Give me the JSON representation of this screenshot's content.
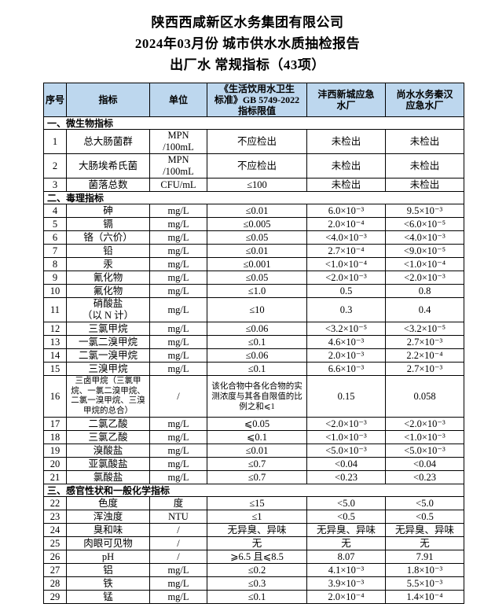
{
  "page": {
    "title1": "陕西西咸新区水务集团有限公司",
    "title2": "2024年03月份 城市供水水质抽检报告",
    "title3": "出厂水 常规指标（43项）"
  },
  "colors": {
    "header_bg": "#bdd7ee",
    "border": "#000000"
  },
  "table": {
    "header": [
      "序号",
      "指标",
      "单位",
      "《生活饮用水卫生\n标准》GB 5749-2022\n指标限值",
      "沣西新城应急\n水厂",
      "尚水水务秦汉\n应急水厂"
    ],
    "sections": [
      {
        "title": "一、微生物指标",
        "rows": [
          {
            "no": "1",
            "indicator": "总大肠菌群",
            "unit": "MPN /100mL",
            "limit": "不应检出",
            "values": [
              "未检出",
              "未检出"
            ]
          },
          {
            "no": "2",
            "indicator": "大肠埃希氏菌",
            "unit": "MPN /100mL",
            "limit": "不应检出",
            "values": [
              "未检出",
              "未检出"
            ]
          },
          {
            "no": "3",
            "indicator": "菌落总数",
            "unit": "CFU/mL",
            "limit": "≤100",
            "values": [
              "未检出",
              "未检出"
            ]
          }
        ]
      },
      {
        "title": "二、毒理指标",
        "rows": [
          {
            "no": "4",
            "indicator": "砷",
            "unit": "mg/L",
            "limit": "≤0.01",
            "values": [
              "6.0×10⁻³",
              "9.5×10⁻³"
            ]
          },
          {
            "no": "5",
            "indicator": "镉",
            "unit": "mg/L",
            "limit": "≤0.005",
            "values": [
              "2.0×10⁻⁴",
              "<6.0×10⁻⁵"
            ]
          },
          {
            "no": "6",
            "indicator": "铬（六价）",
            "unit": "mg/L",
            "limit": "≤0.05",
            "values": [
              "<4.0×10⁻³",
              "<4.0×10⁻³"
            ]
          },
          {
            "no": "7",
            "indicator": "铅",
            "unit": "mg/L",
            "limit": "≤0.01",
            "values": [
              "2.7×10⁻⁴",
              "<9.0×10⁻⁵"
            ]
          },
          {
            "no": "8",
            "indicator": "汞",
            "unit": "mg/L",
            "limit": "≤0.001",
            "values": [
              "<1.0×10⁻⁴",
              "<1.0×10⁻⁴"
            ]
          },
          {
            "no": "9",
            "indicator": "氰化物",
            "unit": "mg/L",
            "limit": "≤0.05",
            "values": [
              "<2.0×10⁻³",
              "<2.0×10⁻³"
            ]
          },
          {
            "no": "10",
            "indicator": "氟化物",
            "unit": "mg/L",
            "limit": "≤1.0",
            "values": [
              "0.5",
              "0.8"
            ]
          },
          {
            "no": "11",
            "indicator": "硝酸盐\n（以 N 计）",
            "unit": "mg/L",
            "limit": "≤10",
            "values": [
              "0.3",
              "0.4"
            ]
          },
          {
            "no": "12",
            "indicator": "三氯甲烷",
            "unit": "mg/L",
            "limit": "≤0.06",
            "values": [
              "<3.2×10⁻⁵",
              "<3.2×10⁻⁵"
            ]
          },
          {
            "no": "13",
            "indicator": "一氯二溴甲烷",
            "unit": "mg/L",
            "limit": "≤0.1",
            "values": [
              "4.6×10⁻³",
              "2.7×10⁻³"
            ]
          },
          {
            "no": "14",
            "indicator": "二氯一溴甲烷",
            "unit": "mg/L",
            "limit": "≤0.06",
            "values": [
              "2.0×10⁻³",
              "2.2×10⁻⁴"
            ]
          },
          {
            "no": "15",
            "indicator": "三溴甲烷",
            "unit": "mg/L",
            "limit": "≤0.1",
            "values": [
              "6.6×10⁻³",
              "2.7×10⁻³"
            ]
          },
          {
            "no": "16",
            "indicator": "三卤甲烷（三氯甲烷、一氯二溴甲烷、二氯一溴甲烷、三溴甲烷的总合）",
            "unit": "/",
            "limit": "该化合物中各化合物的实测浓度与其各自限值的比例之和⩽1",
            "values": [
              "0.15",
              "0.058"
            ]
          },
          {
            "no": "17",
            "indicator": "二氯乙酸",
            "unit": "mg/L",
            "limit": "⩽0.05",
            "values": [
              "<2.0×10⁻³",
              "<2.0×10⁻³"
            ]
          },
          {
            "no": "18",
            "indicator": "三氯乙酸",
            "unit": "mg/L",
            "limit": "⩽0.1",
            "values": [
              "<1.0×10⁻³",
              "<1.0×10⁻³"
            ]
          },
          {
            "no": "19",
            "indicator": "溴酸盐",
            "unit": "mg/L",
            "limit": "≤0.01",
            "values": [
              "<5.0×10⁻³",
              "<5.0×10⁻³"
            ]
          },
          {
            "no": "20",
            "indicator": "亚氯酸盐",
            "unit": "mg/L",
            "limit": "≤0.7",
            "values": [
              "<0.04",
              "<0.04"
            ]
          },
          {
            "no": "21",
            "indicator": "氯酸盐",
            "unit": "mg/L",
            "limit": "≤0.7",
            "values": [
              "<0.23",
              "<0.23"
            ]
          }
        ]
      },
      {
        "title": "三、感官性状和一般化学指标",
        "rows": [
          {
            "no": "22",
            "indicator": "色度",
            "unit": "度",
            "limit": "≤15",
            "values": [
              "<5.0",
              "<5.0"
            ]
          },
          {
            "no": "23",
            "indicator": "浑浊度",
            "unit": "NTU",
            "limit": "≤1",
            "values": [
              "<0.5",
              "<0.5"
            ]
          },
          {
            "no": "24",
            "indicator": "臭和味",
            "unit": "/",
            "limit": "无异臭、异味",
            "values": [
              "无异臭、异味",
              "无异臭、异味"
            ]
          },
          {
            "no": "25",
            "indicator": "肉眼可见物",
            "unit": "/",
            "limit": "无",
            "values": [
              "无",
              "无"
            ]
          },
          {
            "no": "26",
            "indicator": "pH",
            "unit": "/",
            "limit": "⩾6.5 且⩽8.5",
            "values": [
              "8.07",
              "7.91"
            ]
          },
          {
            "no": "27",
            "indicator": "铝",
            "unit": "mg/L",
            "limit": "≤0.2",
            "values": [
              "4.1×10⁻³",
              "1.8×10⁻³"
            ]
          },
          {
            "no": "28",
            "indicator": "铁",
            "unit": "mg/L",
            "limit": "≤0.3",
            "values": [
              "3.9×10⁻³",
              "5.5×10⁻³"
            ]
          },
          {
            "no": "29",
            "indicator": "锰",
            "unit": "mg/L",
            "limit": "≤0.1",
            "values": [
              "2.0×10⁻⁴",
              "1.4×10⁻⁴"
            ]
          }
        ]
      }
    ]
  }
}
